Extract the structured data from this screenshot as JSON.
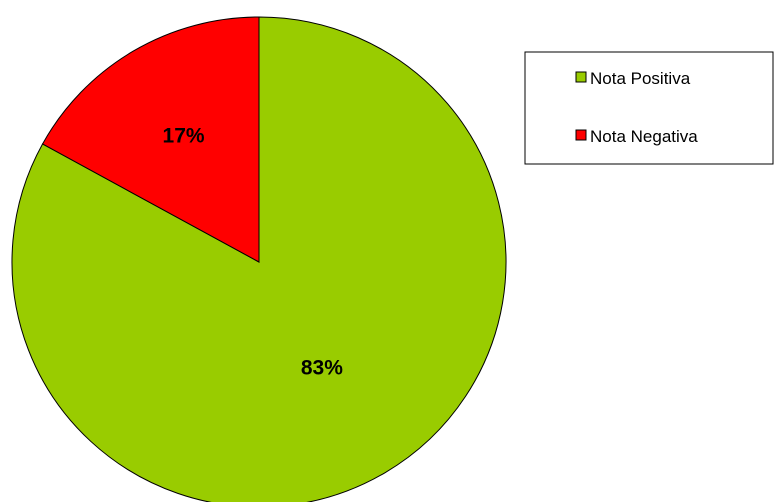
{
  "chart_data": {
    "type": "pie",
    "title": "",
    "slices": [
      {
        "label": "Nota Positiva",
        "value": 83,
        "display": "83%",
        "color": "#99cc00"
      },
      {
        "label": "Nota Negativa",
        "value": 17,
        "display": "17%",
        "color": "#ff0000"
      }
    ],
    "start_angle_deg": 0,
    "direction": "clockwise",
    "legend": {
      "position": "right",
      "entries": [
        "Nota Positiva",
        "Nota Negativa"
      ]
    }
  }
}
